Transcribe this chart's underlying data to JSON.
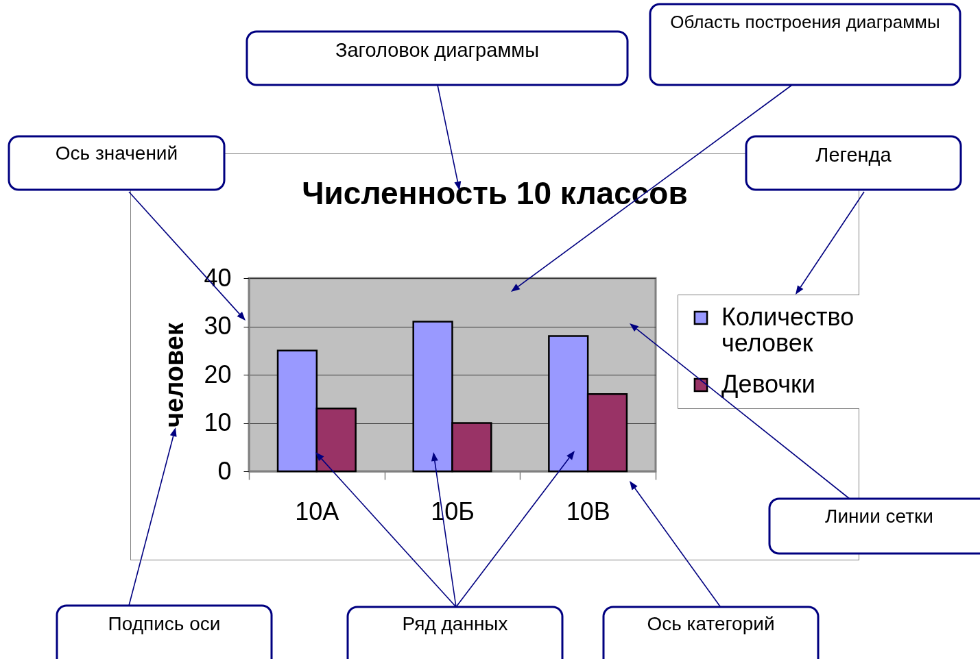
{
  "chart_data": {
    "type": "bar",
    "title": "Численность 10 классов",
    "ylabel": "человек",
    "categories": [
      "10А",
      "10Б",
      "10В"
    ],
    "series": [
      {
        "name": "Количество человек",
        "color": "#9999ff",
        "values": [
          25,
          31,
          28
        ]
      },
      {
        "name": "Девочки",
        "color": "#993366",
        "values": [
          13,
          10,
          16
        ]
      }
    ],
    "ylim": [
      0,
      40
    ],
    "yticks": [
      0,
      10,
      20,
      30,
      40
    ],
    "grid": "y",
    "legend": "right",
    "annotations": [
      "Заголовок диаграммы",
      "Область построения диаграммы",
      "Ось значений",
      "Легенда",
      "Линии сетки",
      "Подпись оси",
      "Ряд данных",
      "Ось категорий"
    ]
  }
}
